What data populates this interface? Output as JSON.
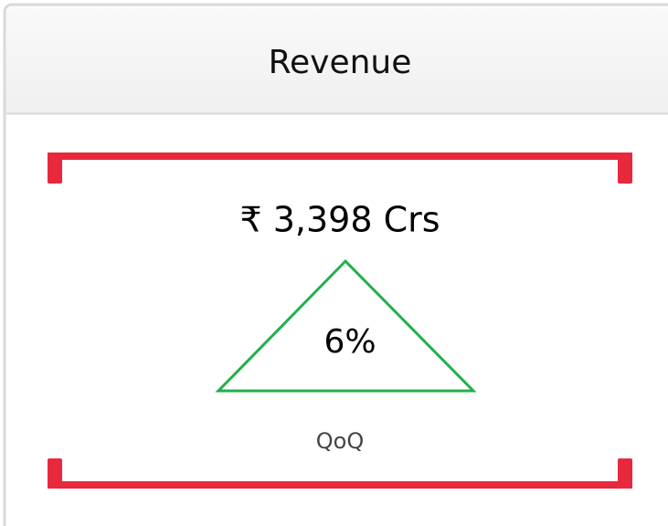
{
  "header": {
    "title": "Revenue"
  },
  "metric": {
    "value": "₹ 3,398 Crs",
    "change": "6%",
    "period": "QoQ"
  }
}
